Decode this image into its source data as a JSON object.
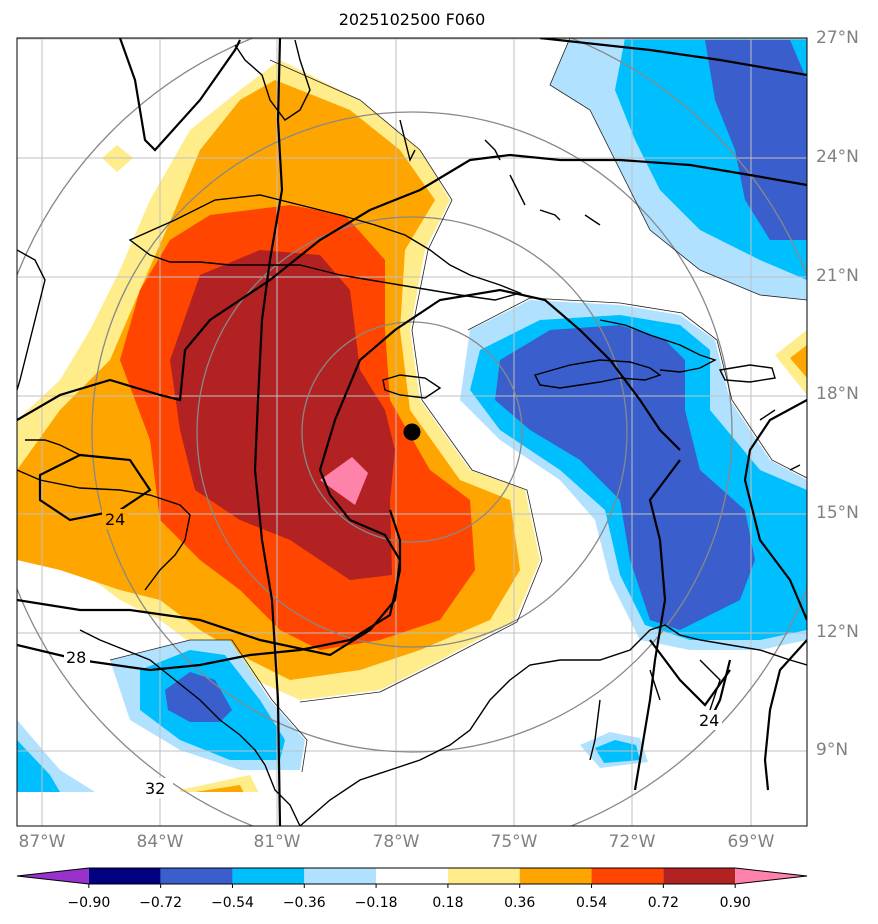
{
  "title": "2025102500 F060",
  "latitude_labels": [
    "27°N",
    "24°N",
    "21°N",
    "18°N",
    "15°N",
    "12°N",
    "9°N"
  ],
  "longitude_labels": [
    "87°W",
    "84°W",
    "81°W",
    "78°W",
    "75°W",
    "72°W",
    "69°W"
  ],
  "contour_labels": [
    "24",
    "28",
    "32",
    "24"
  ],
  "colorbar": {
    "tick_labels": [
      "−0.90",
      "−0.72",
      "−0.54",
      "−0.36",
      "−0.18",
      "0.18",
      "0.36",
      "0.54",
      "0.72",
      "0.90"
    ],
    "colors": [
      "#9932cc",
      "#000080",
      "#3a5fcd",
      "#00bfff",
      "#b0e2ff",
      "#ffffff",
      "#ffec8b",
      "#ffa500",
      "#ff4500",
      "#b22222",
      "#ff82ab"
    ]
  },
  "chart_data": {
    "type": "filled-contour map",
    "title": "2025102500 F060",
    "lat_range": [
      7.7,
      27.3
    ],
    "lon_range": [
      -87.3,
      -67.3
    ],
    "contour_levels": [
      -0.9,
      -0.72,
      -0.54,
      -0.36,
      -0.18,
      0.18,
      0.36,
      0.54,
      0.72,
      0.9
    ],
    "storm_center": {
      "lat": 17.1,
      "lon": -77.5
    },
    "features": [
      {
        "name": "positive anomaly core",
        "max_level": 0.9,
        "lat": 16.0,
        "lon": -79.0
      },
      {
        "name": "negative anomaly east (Hispaniola)",
        "min_level": -0.72,
        "lat": 17.5,
        "lon": -72.5
      },
      {
        "name": "negative anomaly northeast",
        "min_level": -0.72,
        "lat": 25.0,
        "lon": -68.5
      },
      {
        "name": "negative anomaly Nicaragua/Honduras",
        "min_level": -0.72,
        "lat": 10.5,
        "lon": -83.0
      }
    ],
    "black_contour_labels": [
      {
        "value": "24",
        "lat": 15.0,
        "lon": -85.0
      },
      {
        "value": "28",
        "lat": 11.9,
        "lon": -85.5
      },
      {
        "value": "32",
        "lat": 8.6,
        "lon": -83.5
      },
      {
        "value": "24",
        "lat": 9.8,
        "lon": -69.7
      }
    ]
  }
}
